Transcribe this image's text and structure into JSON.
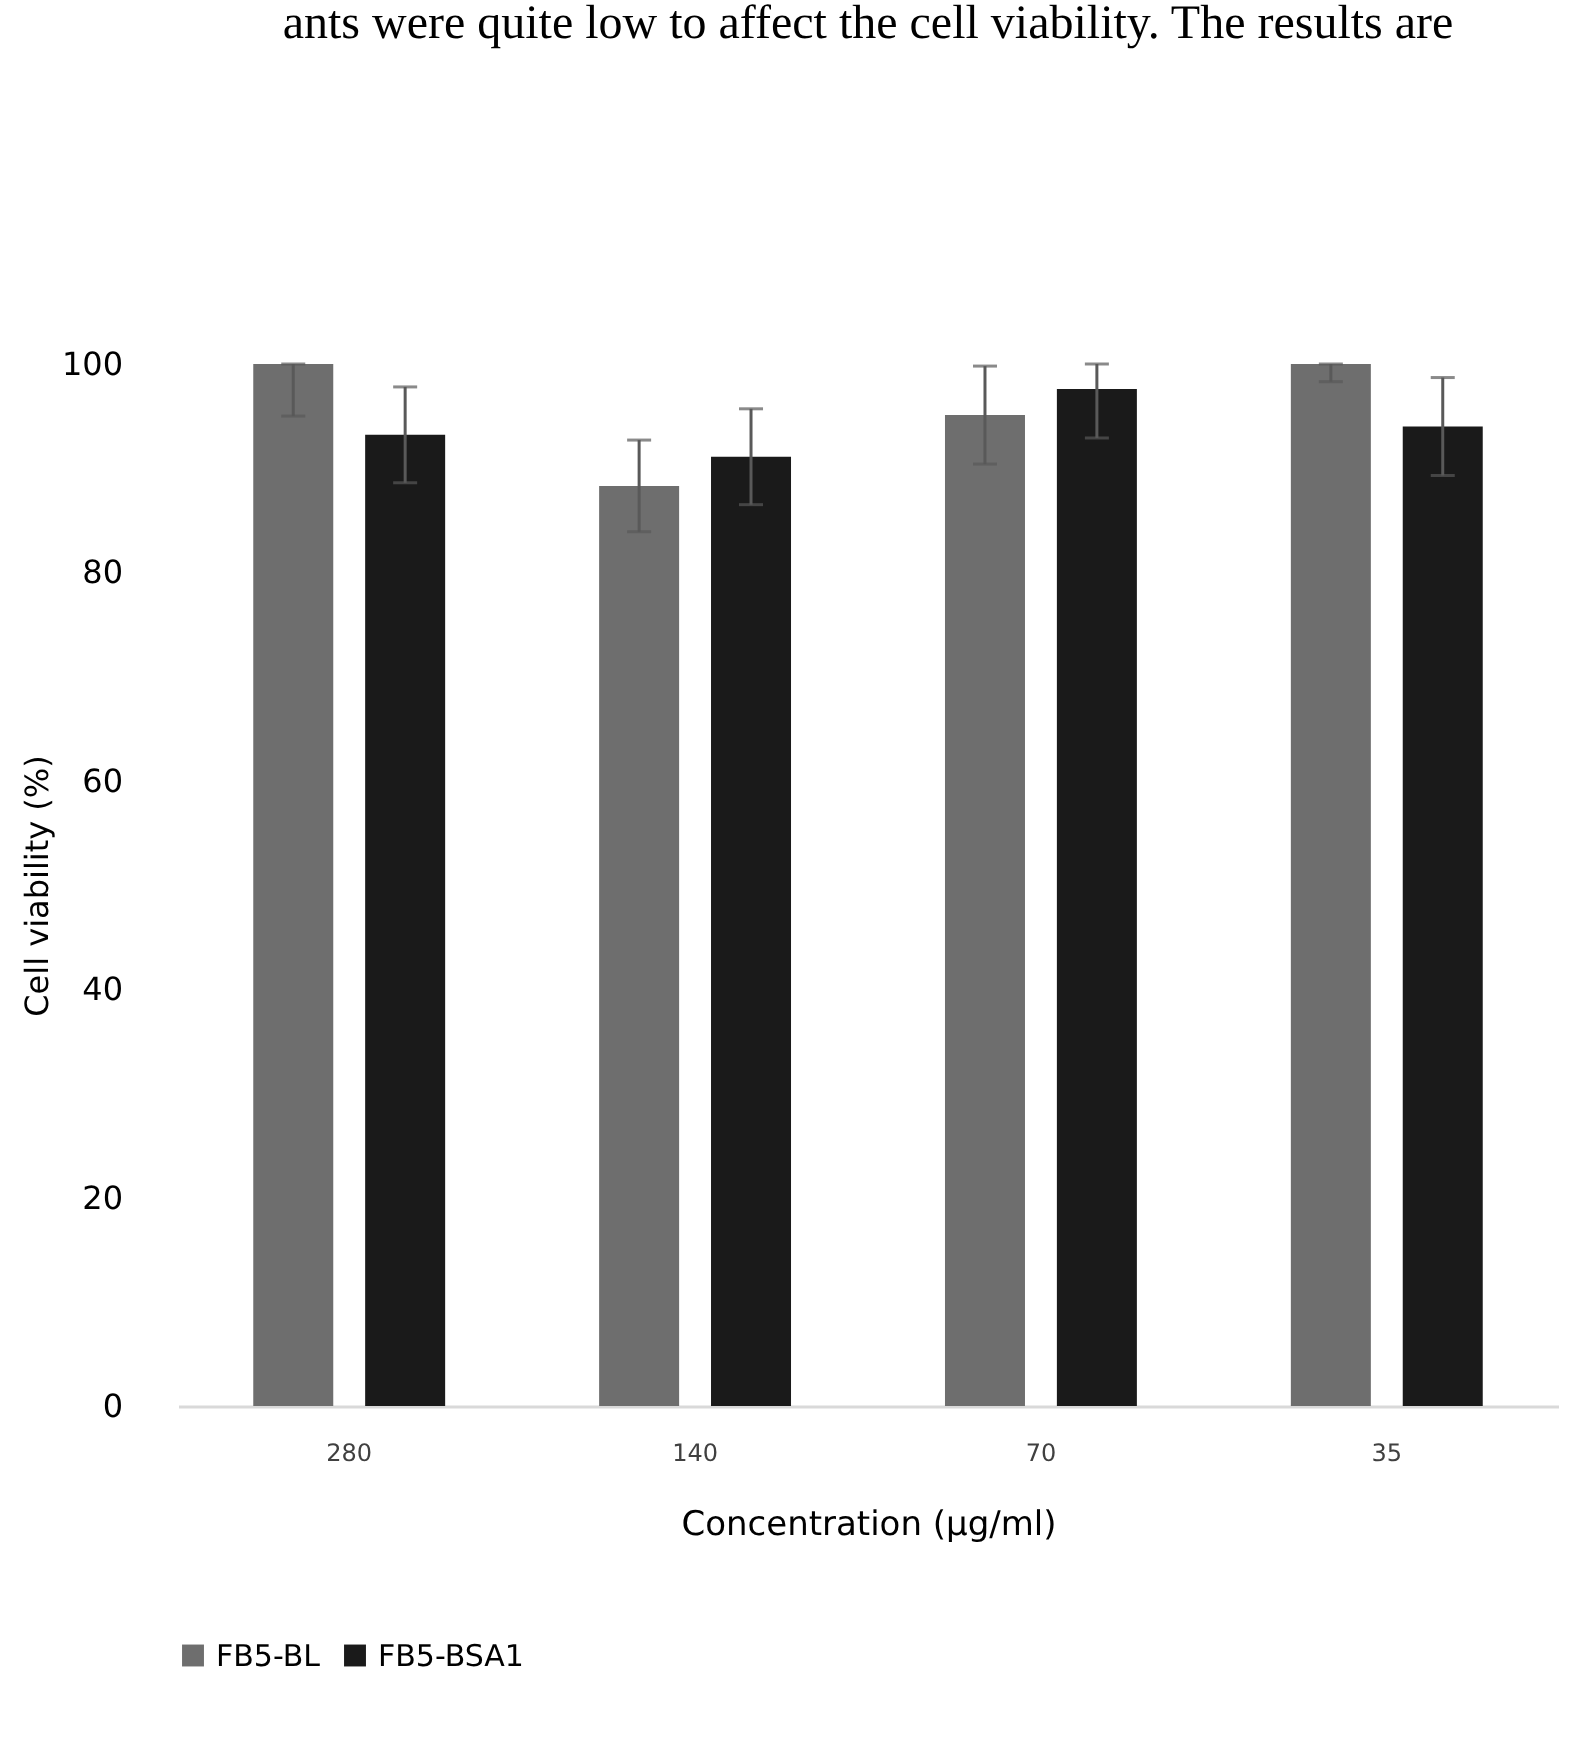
{
  "chart_data": {
    "type": "bar",
    "annotations": [
      "ants were quite low to affect the cell viability. The results are"
    ],
    "xlabel": "Concentration (µg/ml)",
    "ylabel": "Cell viability (%)",
    "categories": [
      "280",
      "140",
      "70",
      "35"
    ],
    "series": [
      {
        "name": "FB5-BL",
        "color": "#6e6e6e",
        "values": [
          100,
          88.3,
          95.1,
          100
        ],
        "errors": [
          [
            95.0,
            100
          ],
          4.4,
          4.7,
          [
            98.3,
            100
          ]
        ]
      },
      {
        "name": "FB5-BSA1",
        "color": "#1a1a1a",
        "values": [
          93.2,
          91.1,
          97.6,
          94.0
        ],
        "errors": [
          4.6,
          4.6,
          [
            92.9,
            100
          ],
          4.7
        ]
      }
    ],
    "ylim": [
      0,
      100
    ],
    "yticks": [
      0,
      20,
      40,
      60,
      80,
      100
    ],
    "grid": false,
    "legend": "bottom"
  }
}
